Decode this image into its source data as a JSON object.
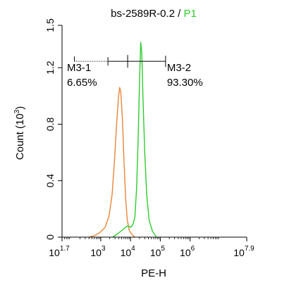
{
  "chart_data": {
    "type": "line",
    "title": {
      "sample": "bs-2589R-0.2",
      "separator": " / ",
      "gate": "P1"
    },
    "xlabel": "PE-H",
    "ylabel": {
      "text": "Count (10",
      "exponent": "3",
      "close": ")"
    },
    "x_scale": "log",
    "xlim": [
      50,
      80000000
    ],
    "ylim": [
      0,
      1.5
    ],
    "x_ticks": [
      {
        "value": 50,
        "base": "10",
        "exp": "1.7"
      },
      {
        "value": 1000,
        "base": "10",
        "exp": "3"
      },
      {
        "value": 10000,
        "base": "10",
        "exp": "4"
      },
      {
        "value": 100000,
        "base": "10",
        "exp": "5"
      },
      {
        "value": 1000000,
        "base": "10",
        "exp": "6"
      },
      {
        "value": 80000000,
        "base": "10",
        "exp": "7.9"
      }
    ],
    "y_ticks": [
      "0",
      "0.4",
      "0.8",
      "1.2",
      "1.5"
    ],
    "y_tick_values": [
      0,
      0.4,
      0.8,
      1.2,
      1.5
    ],
    "colors": {
      "orange": "#e8863a",
      "green": "#2ecc2e",
      "axis": "#000000",
      "gate": "#000000"
    },
    "series": [
      {
        "color": "#e8863a",
        "points": [
          [
            400,
            0.0
          ],
          [
            600,
            0.01
          ],
          [
            900,
            0.03
          ],
          [
            1400,
            0.07
          ],
          [
            1900,
            0.15
          ],
          [
            2400,
            0.3
          ],
          [
            2900,
            0.55
          ],
          [
            3400,
            0.8
          ],
          [
            3900,
            0.98
          ],
          [
            4300,
            1.06
          ],
          [
            4700,
            1.03
          ],
          [
            5300,
            0.85
          ],
          [
            6000,
            0.55
          ],
          [
            6800,
            0.28
          ],
          [
            7800,
            0.12
          ],
          [
            9000,
            0.05
          ],
          [
            11000,
            0.02
          ],
          [
            14000,
            0.0
          ]
        ]
      },
      {
        "color": "#2ecc2e",
        "points": [
          [
            2500,
            0.0
          ],
          [
            4000,
            0.03
          ],
          [
            6000,
            0.06
          ],
          [
            8000,
            0.08
          ],
          [
            10000,
            0.07
          ],
          [
            12000,
            0.09
          ],
          [
            14000,
            0.14
          ],
          [
            16000,
            0.35
          ],
          [
            18000,
            0.7
          ],
          [
            20000,
            1.1
          ],
          [
            22000,
            1.38
          ],
          [
            24000,
            1.3
          ],
          [
            26000,
            1.0
          ],
          [
            30000,
            0.6
          ],
          [
            35000,
            0.3
          ],
          [
            42000,
            0.12
          ],
          [
            55000,
            0.04
          ],
          [
            75000,
            0.0
          ]
        ]
      }
    ],
    "gates": [
      {
        "name": "M3-1",
        "percent": "6.65%",
        "from": 130,
        "to": 8000,
        "y": 1.245
      },
      {
        "name": "M3-2",
        "percent": "93.30%",
        "from": 8000,
        "to": 150000,
        "y": 1.245
      }
    ]
  }
}
